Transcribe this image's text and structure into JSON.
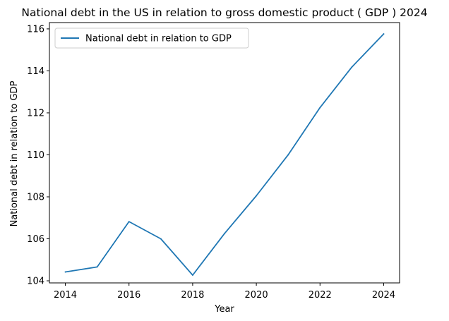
{
  "chart_data": {
    "type": "line",
    "title": "National debt in the US in relation to gross domestic product ( GDP ) 2024",
    "xlabel": "Year",
    "ylabel": "National debt in relation to GDP",
    "x": [
      2014,
      2015,
      2016,
      2017,
      2018,
      2019,
      2020,
      2021,
      2022,
      2023,
      2024
    ],
    "series": [
      {
        "name": "National debt in relation to GDP",
        "values": [
          104.42,
          104.66,
          106.82,
          106.0,
          104.27,
          106.25,
          108.05,
          110.0,
          112.25,
          114.18,
          115.76
        ],
        "color": "#1f77b4"
      }
    ],
    "xlim": [
      2013.5,
      2024.5
    ],
    "ylim": [
      103.9,
      116.3
    ],
    "xticks": [
      2014,
      2016,
      2018,
      2020,
      2022,
      2024
    ],
    "yticks": [
      104,
      106,
      108,
      110,
      112,
      114,
      116
    ],
    "grid": false,
    "legend": "top-left"
  }
}
